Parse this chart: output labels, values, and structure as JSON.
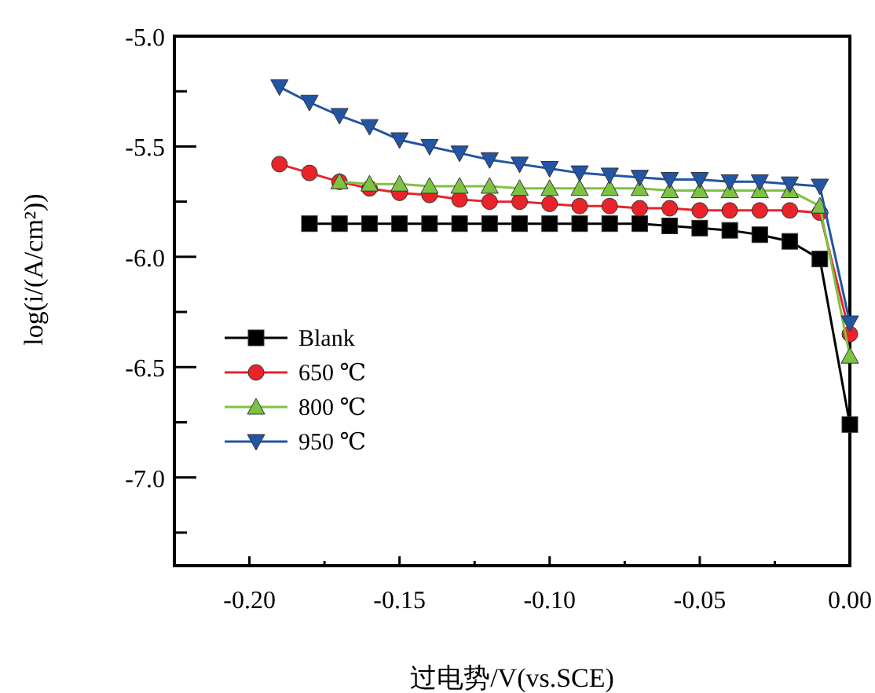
{
  "chart_data": {
    "type": "line",
    "xlabel": "过电势/V(vs.SCE)",
    "ylabel": "log(i/(A/cm²))",
    "xlim": [
      -0.225,
      0.0
    ],
    "ylim": [
      -7.4,
      -5.0
    ],
    "xticks": [
      {
        "value": -0.2,
        "label": "-0.20"
      },
      {
        "value": -0.175,
        "label": null
      },
      {
        "value": -0.15,
        "label": "-0.15"
      },
      {
        "value": -0.125,
        "label": null
      },
      {
        "value": -0.1,
        "label": "-0.10"
      },
      {
        "value": -0.075,
        "label": null
      },
      {
        "value": -0.05,
        "label": "-0.05"
      },
      {
        "value": -0.025,
        "label": null
      },
      {
        "value": 0.0,
        "label": "0.00"
      }
    ],
    "yticks": [
      {
        "value": -5.0,
        "label": "-5.0"
      },
      {
        "value": -5.25,
        "label": null
      },
      {
        "value": -5.5,
        "label": "-5.5"
      },
      {
        "value": -5.75,
        "label": null
      },
      {
        "value": -6.0,
        "label": "-6.0"
      },
      {
        "value": -6.25,
        "label": null
      },
      {
        "value": -6.5,
        "label": "-6.5"
      },
      {
        "value": -6.75,
        "label": null
      },
      {
        "value": -7.0,
        "label": "-7.0"
      },
      {
        "value": -7.25,
        "label": null
      }
    ],
    "legend": "left",
    "grid": false,
    "line_style": "solid",
    "series": [
      {
        "name": "Blank",
        "color": "#000000",
        "marker": "square",
        "x": [
          -0.18,
          -0.17,
          -0.16,
          -0.15,
          -0.14,
          -0.13,
          -0.12,
          -0.11,
          -0.1,
          -0.09,
          -0.08,
          -0.07,
          -0.06,
          -0.05,
          -0.04,
          -0.03,
          -0.02,
          -0.01,
          0.0
        ],
        "values": [
          -5.85,
          -5.85,
          -5.85,
          -5.85,
          -5.85,
          -5.85,
          -5.85,
          -5.85,
          -5.85,
          -5.85,
          -5.85,
          -5.85,
          -5.86,
          -5.87,
          -5.88,
          -5.9,
          -5.93,
          -6.01,
          -6.76
        ]
      },
      {
        "name": "650 ℃",
        "color": "#e8242a",
        "marker": "circle",
        "x": [
          -0.19,
          -0.18,
          -0.17,
          -0.16,
          -0.15,
          -0.14,
          -0.13,
          -0.12,
          -0.11,
          -0.1,
          -0.09,
          -0.08,
          -0.07,
          -0.06,
          -0.05,
          -0.04,
          -0.03,
          -0.02,
          -0.01,
          0.0
        ],
        "values": [
          -5.58,
          -5.62,
          -5.66,
          -5.69,
          -5.71,
          -5.72,
          -5.74,
          -5.75,
          -5.75,
          -5.76,
          -5.77,
          -5.77,
          -5.78,
          -5.78,
          -5.79,
          -5.79,
          -5.79,
          -5.79,
          -5.8,
          -6.35
        ]
      },
      {
        "name": "800 ℃",
        "color": "#7dc242",
        "marker": "triangle",
        "x": [
          -0.17,
          -0.16,
          -0.15,
          -0.14,
          -0.13,
          -0.12,
          -0.11,
          -0.1,
          -0.09,
          -0.08,
          -0.07,
          -0.06,
          -0.05,
          -0.04,
          -0.03,
          -0.02,
          -0.01,
          0.0
        ],
        "values": [
          -5.66,
          -5.67,
          -5.67,
          -5.68,
          -5.68,
          -5.68,
          -5.69,
          -5.69,
          -5.69,
          -5.69,
          -5.69,
          -5.7,
          -5.7,
          -5.7,
          -5.7,
          -5.7,
          -5.77,
          -6.45
        ]
      },
      {
        "name": "950 ℃",
        "color": "#2255a4",
        "marker": "triangle-down",
        "x": [
          -0.19,
          -0.18,
          -0.17,
          -0.16,
          -0.15,
          -0.14,
          -0.13,
          -0.12,
          -0.11,
          -0.1,
          -0.09,
          -0.08,
          -0.07,
          -0.06,
          -0.05,
          -0.04,
          -0.03,
          -0.02,
          -0.01,
          0.0
        ],
        "values": [
          -5.23,
          -5.3,
          -5.36,
          -5.41,
          -5.47,
          -5.5,
          -5.53,
          -5.56,
          -5.58,
          -5.6,
          -5.62,
          -5.63,
          -5.64,
          -5.65,
          -5.65,
          -5.66,
          -5.66,
          -5.67,
          -5.68,
          -6.3
        ]
      }
    ]
  }
}
